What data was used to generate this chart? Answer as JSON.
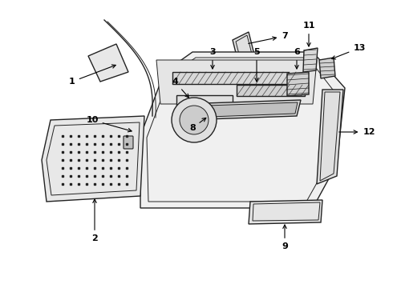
{
  "background_color": "#ffffff",
  "line_color": "#222222",
  "label_color": "#000000",
  "label_fontsize": 8,
  "label_fontweight": "bold",
  "fig_width": 4.9,
  "fig_height": 3.6,
  "dpi": 100
}
